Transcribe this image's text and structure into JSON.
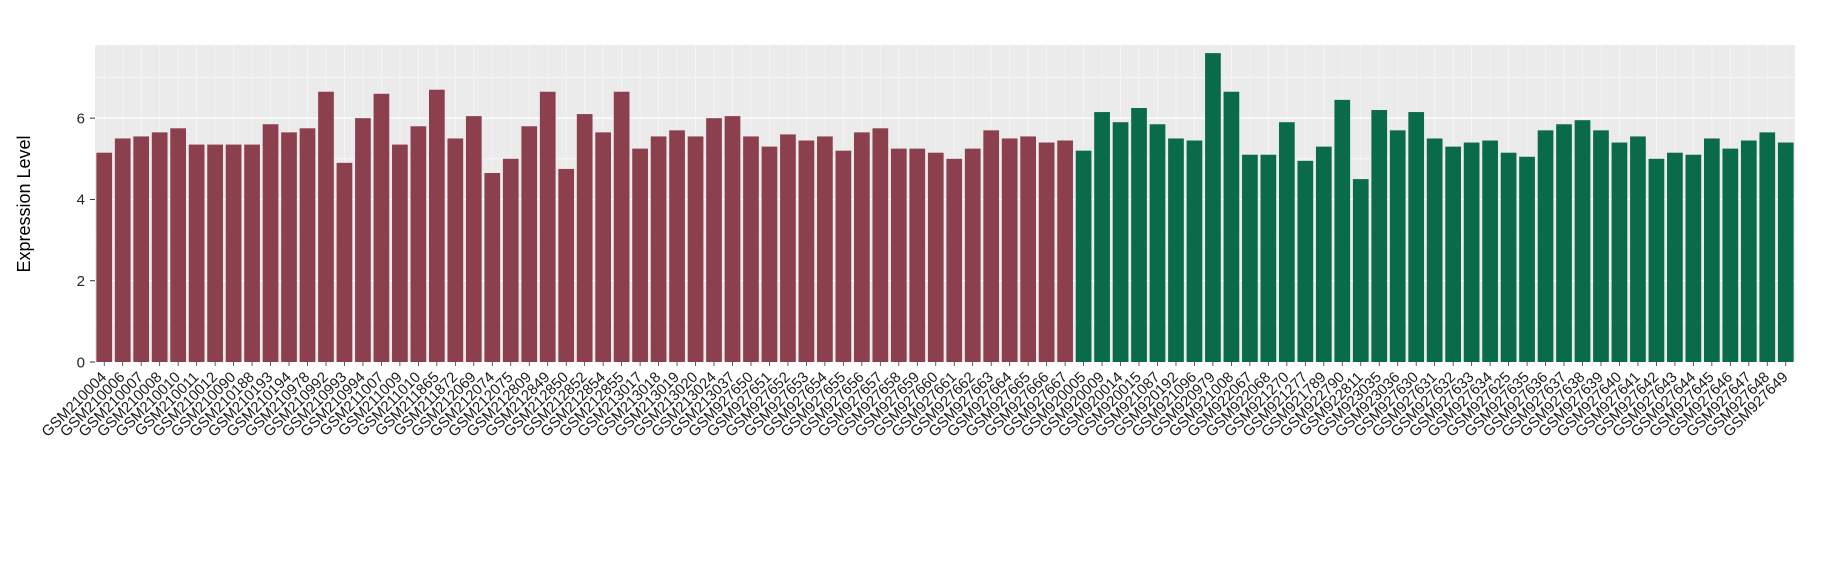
{
  "chart_data": {
    "type": "bar",
    "title": "",
    "xlabel": "",
    "ylabel": "Expression Level",
    "ylim": [
      0,
      7.8
    ],
    "yticks": [
      0,
      2,
      4,
      6
    ],
    "grid": "on",
    "legend": "none",
    "panel_background": "#ebebeb",
    "grid_color": "#ffffff",
    "axis_text_color": "#262626",
    "groups": [
      {
        "name": "group-1-red",
        "color": "#8c3f4d",
        "samples": [
          "GSM210004",
          "GSM210006",
          "GSM210007",
          "GSM210008",
          "GSM210010",
          "GSM210011",
          "GSM210012",
          "GSM210090",
          "GSM210188",
          "GSM210193",
          "GSM210194",
          "GSM210978",
          "GSM210992",
          "GSM210993",
          "GSM210994",
          "GSM211007",
          "GSM211009",
          "GSM211010",
          "GSM211865",
          "GSM211872",
          "GSM212069",
          "GSM212074",
          "GSM212075",
          "GSM212809",
          "GSM212849",
          "GSM212850",
          "GSM212852",
          "GSM212854",
          "GSM212855",
          "GSM213017",
          "GSM213018",
          "GSM213019",
          "GSM213020",
          "GSM213024",
          "GSM213037",
          "GSM927650",
          "GSM927651",
          "GSM927652",
          "GSM927653",
          "GSM927654",
          "GSM927655",
          "GSM927656",
          "GSM927657",
          "GSM927658",
          "GSM927659",
          "GSM927660",
          "GSM927661",
          "GSM927662",
          "GSM927663",
          "GSM927664",
          "GSM927665",
          "GSM927666",
          "GSM927667"
        ],
        "values": [
          5.15,
          5.5,
          5.55,
          5.65,
          5.75,
          5.35,
          5.35,
          5.35,
          5.35,
          5.85,
          5.65,
          5.75,
          6.65,
          4.9,
          6.0,
          6.6,
          5.35,
          5.8,
          6.7,
          5.5,
          6.05,
          4.65,
          5.0,
          5.8,
          6.65,
          4.75,
          6.1,
          5.65,
          6.65,
          5.25,
          5.55,
          5.7,
          5.55,
          6.0,
          6.05,
          5.55,
          5.3,
          5.6,
          5.45,
          5.55,
          5.2,
          5.65,
          5.75,
          5.25,
          5.25,
          5.15,
          5.0,
          5.25,
          5.7,
          5.5,
          5.55,
          5.4,
          5.45
        ]
      },
      {
        "name": "group-2-green",
        "color": "#0a6b4b",
        "samples": [
          "GSM920005",
          "GSM920009",
          "GSM920014",
          "GSM920015",
          "GSM921087",
          "GSM920192",
          "GSM921096",
          "GSM920979",
          "GSM921008",
          "GSM922067",
          "GSM922068",
          "GSM921270",
          "GSM921277",
          "GSM921789",
          "GSM922790",
          "GSM922811",
          "GSM923035",
          "GSM923036",
          "GSM927630",
          "GSM927631",
          "GSM927632",
          "GSM927633",
          "GSM927634",
          "GSM927625",
          "GSM927635",
          "GSM927636",
          "GSM927637",
          "GSM927638",
          "GSM927639",
          "GSM927640",
          "GSM927641",
          "GSM927642",
          "GSM927643",
          "GSM927644",
          "GSM927645",
          "GSM927646",
          "GSM927647",
          "GSM927648",
          "GSM927649"
        ],
        "values": [
          5.2,
          6.15,
          5.9,
          6.25,
          5.85,
          5.5,
          5.45,
          7.6,
          6.65,
          5.1,
          5.1,
          5.9,
          4.95,
          5.3,
          6.45,
          4.5,
          6.2,
          5.7,
          6.15,
          5.5,
          5.3,
          5.4,
          5.45,
          5.15,
          5.05,
          5.7,
          5.85,
          5.95,
          5.7,
          5.4,
          5.55,
          5.0,
          5.15,
          5.1,
          5.5,
          5.25,
          5.45,
          5.65,
          5.4
        ]
      }
    ]
  }
}
